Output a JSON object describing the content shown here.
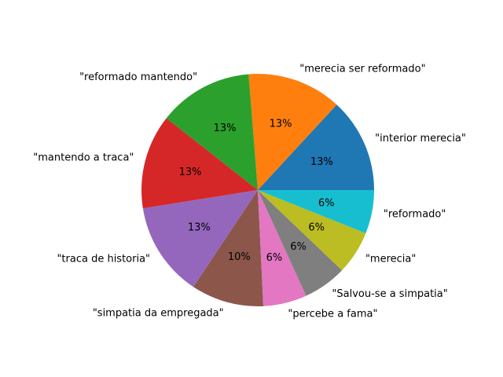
{
  "chart_data": {
    "type": "pie",
    "title": "",
    "start_angle_deg": 0,
    "direction": "counterclockwise",
    "slices": [
      {
        "label": "\"interior merecia\"",
        "pct_label": "13%",
        "value": 13,
        "color": "#1f77b4"
      },
      {
        "label": "\"merecia ser reformado\"",
        "pct_label": "13%",
        "value": 13,
        "color": "#ff7f0e"
      },
      {
        "label": "\"reformado mantendo\"",
        "pct_label": "13%",
        "value": 13,
        "color": "#2ca02c"
      },
      {
        "label": "\"mantendo a traca\"",
        "pct_label": "13%",
        "value": 13,
        "color": "#d62728"
      },
      {
        "label": "\"traca de historia\"",
        "pct_label": "13%",
        "value": 13,
        "color": "#9467bd"
      },
      {
        "label": "\"simpatia da empregada\"",
        "pct_label": "10%",
        "value": 10,
        "color": "#8c564b"
      },
      {
        "label": "\"percebe a fama\"",
        "pct_label": "6%",
        "value": 6,
        "color": "#e377c2"
      },
      {
        "label": "\"Salvou-se a simpatia\"",
        "pct_label": "6%",
        "value": 6,
        "color": "#7f7f7f"
      },
      {
        "label": "\"merecia\"",
        "pct_label": "6%",
        "value": 6,
        "color": "#bcbd22"
      },
      {
        "label": "\"reformado\"",
        "pct_label": "6%",
        "value": 6,
        "color": "#17becf"
      }
    ]
  }
}
